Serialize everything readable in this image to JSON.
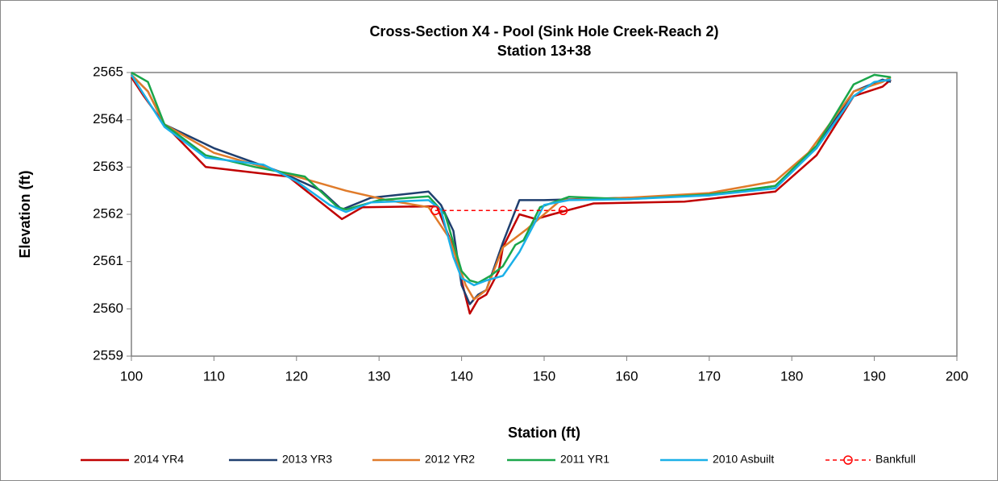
{
  "chart_data": {
    "type": "line",
    "title": "Cross-Section X4 - Pool (Sink Hole Creek-Reach 2)",
    "subtitle": "Station 13+38",
    "x_label": "Station (ft)",
    "y_label": "Elevation (ft)",
    "xlim": [
      100,
      200
    ],
    "xticks": [
      100,
      110,
      120,
      130,
      140,
      150,
      160,
      170,
      180,
      190,
      200
    ],
    "ylim": [
      2559,
      2565
    ],
    "yticks": [
      2559,
      2560,
      2561,
      2562,
      2563,
      2564,
      2565
    ],
    "grid": false,
    "legend": "bottom",
    "series": [
      {
        "name": "2014 YR4",
        "color": "#c00000",
        "style": "solid",
        "x": [
          100,
          101.5,
          104,
          109,
          119,
          125.5,
          128,
          137,
          139,
          141,
          142,
          143,
          144.5,
          145,
          147,
          149,
          151,
          156,
          167,
          178,
          183,
          187.5,
          191,
          192
        ],
        "values": [
          2564.9,
          2564.5,
          2563.9,
          2563.0,
          2562.8,
          2561.9,
          2562.15,
          2562.17,
          2561.3,
          2559.9,
          2560.2,
          2560.3,
          2560.8,
          2561.3,
          2562.0,
          2561.9,
          2562.0,
          2562.23,
          2562.27,
          2562.48,
          2563.25,
          2564.5,
          2564.7,
          2564.85
        ]
      },
      {
        "name": "2013 YR3",
        "color": "#1f3f6f",
        "style": "solid",
        "x": [
          100,
          102,
          104,
          110,
          118,
          123,
          125.5,
          129,
          136,
          137.5,
          139,
          140,
          141,
          142,
          143,
          145,
          147,
          150,
          160,
          170,
          178,
          183,
          187.5,
          191,
          192
        ],
        "values": [
          2564.95,
          2564.6,
          2563.9,
          2563.4,
          2562.9,
          2562.5,
          2562.1,
          2562.35,
          2562.48,
          2562.2,
          2561.65,
          2560.5,
          2560.1,
          2560.3,
          2560.4,
          2561.4,
          2562.3,
          2562.3,
          2562.35,
          2562.4,
          2562.6,
          2563.4,
          2564.6,
          2564.85,
          2564.8
        ]
      },
      {
        "name": "2012 YR2",
        "color": "#e07b2a",
        "style": "solid",
        "x": [
          100,
          102,
          104,
          110,
          120,
          126,
          131,
          136,
          138.5,
          140.5,
          141.5,
          143,
          145,
          148,
          152,
          160,
          170,
          178,
          182,
          187.5,
          191,
          192
        ],
        "values": [
          2564.95,
          2564.6,
          2563.9,
          2563.3,
          2562.8,
          2562.5,
          2562.3,
          2562.15,
          2561.5,
          2560.5,
          2560.2,
          2560.4,
          2561.3,
          2561.7,
          2562.3,
          2562.35,
          2562.45,
          2562.7,
          2563.3,
          2564.6,
          2564.8,
          2564.9
        ]
      },
      {
        "name": "2011 YR1",
        "color": "#1aa64a",
        "style": "solid",
        "x": [
          100,
          102,
          104,
          109,
          115,
          121,
          125,
          126,
          130,
          136,
          138,
          140,
          141,
          142,
          143.5,
          145,
          146.5,
          147.5,
          149.5,
          153,
          160,
          170,
          178,
          183,
          187.5,
          190,
          192
        ],
        "values": [
          2565,
          2564.8,
          2563.9,
          2563.25,
          2563.0,
          2562.8,
          2562.15,
          2562.1,
          2562.3,
          2562.38,
          2562.0,
          2560.8,
          2560.6,
          2560.55,
          2560.7,
          2560.9,
          2561.35,
          2561.45,
          2562.15,
          2562.37,
          2562.32,
          2562.42,
          2562.6,
          2563.45,
          2564.75,
          2564.95,
          2564.9
        ]
      },
      {
        "name": "2010 Asbuilt",
        "color": "#1ab0e8",
        "style": "solid",
        "x": [
          100,
          104,
          109,
          116,
          120,
          124,
          126,
          129,
          136,
          137.5,
          139,
          140,
          141.5,
          143,
          145,
          147,
          150,
          153,
          160,
          170,
          178,
          183,
          187.5,
          190,
          192
        ],
        "values": [
          2564.95,
          2563.85,
          2563.2,
          2563.05,
          2562.7,
          2562.2,
          2562.05,
          2562.25,
          2562.3,
          2562.1,
          2561.1,
          2560.65,
          2560.5,
          2560.6,
          2560.7,
          2561.2,
          2562.2,
          2562.3,
          2562.32,
          2562.4,
          2562.55,
          2563.4,
          2564.5,
          2564.8,
          2564.85
        ]
      },
      {
        "name": "Bankfull",
        "color": "#ff0000",
        "style": "dashed",
        "marker": "circle",
        "x": [
          136.8,
          152.3
        ],
        "values": [
          2562.08,
          2562.08
        ]
      }
    ]
  }
}
